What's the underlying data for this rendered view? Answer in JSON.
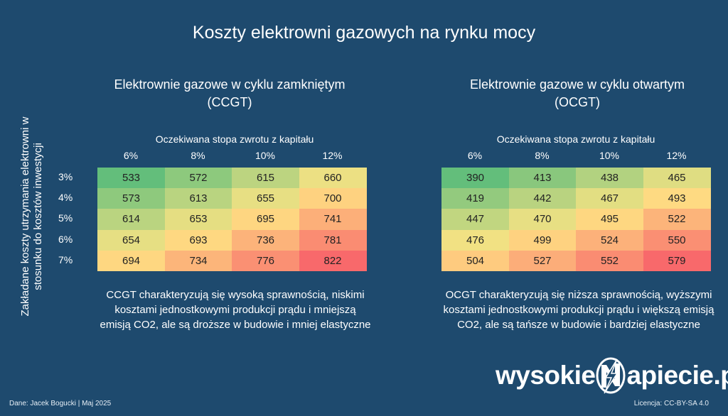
{
  "title": "Koszty elektrowni gazowych na rynku mocy",
  "y_axis_label": [
    "Zakładane koszty utrzymania elektrowni w",
    "stosunku do kosztów inwestycji"
  ],
  "x_axis_label": "Oczekiwana stopa zwrotu z kapitału",
  "footer": {
    "source": "Dane: Jacek Bogucki  |  Maj 2025",
    "license": "Licencja: CC-BY-SA 4.0"
  },
  "logo": {
    "part1": "wysokie",
    "part2": "apiecie.pl",
    "mark_icon": "lightning-n-logo-icon"
  },
  "colors": {
    "background": "#1e4a6e",
    "low": "#63be7b",
    "mid": "#ffe584",
    "high": "#f8696b"
  },
  "chart_data": [
    {
      "type": "heatmap",
      "title": [
        "Elektrownie gazowe w cyklu zamkniętym",
        "(CCGT)"
      ],
      "xlabel": "Oczekiwana stopa zwrotu z kapitału",
      "ylabel": "Zakładane koszty utrzymania elektrowni w stosunku do kosztów inwestycji",
      "columns": [
        "6%",
        "8%",
        "10%",
        "12%"
      ],
      "rows": [
        "3%",
        "4%",
        "5%",
        "6%",
        "7%"
      ],
      "values": [
        [
          533,
          572,
          615,
          660
        ],
        [
          573,
          613,
          655,
          700
        ],
        [
          614,
          653,
          695,
          741
        ],
        [
          654,
          693,
          736,
          781
        ],
        [
          694,
          734,
          776,
          822
        ]
      ],
      "note": [
        "CCGT charakteryzują się wysoką sprawnością, niskimi",
        "kosztami jednostkowymi produkcji prądu i mniejszą",
        "emisją CO2, ale są droższe w budowie i mniej elastyczne"
      ]
    },
    {
      "type": "heatmap",
      "title": [
        "Elektrownie gazowe w cyklu otwartym",
        "(OCGT)"
      ],
      "xlabel": "Oczekiwana stopa zwrotu z kapitału",
      "columns": [
        "6%",
        "8%",
        "10%",
        "12%"
      ],
      "rows": [
        "3%",
        "4%",
        "5%",
        "6%",
        "7%"
      ],
      "values": [
        [
          390,
          413,
          438,
          465
        ],
        [
          419,
          442,
          467,
          493
        ],
        [
          447,
          470,
          495,
          522
        ],
        [
          476,
          499,
          524,
          550
        ],
        [
          504,
          527,
          552,
          579
        ]
      ],
      "note": [
        "OCGT charakteryzują się niższa sprawnością, wyższymi",
        "kosztami jednostkowymi produkcji prądu i większą emisją",
        "CO2, ale są tańsze w budowie i bardziej elastyczne"
      ]
    }
  ]
}
